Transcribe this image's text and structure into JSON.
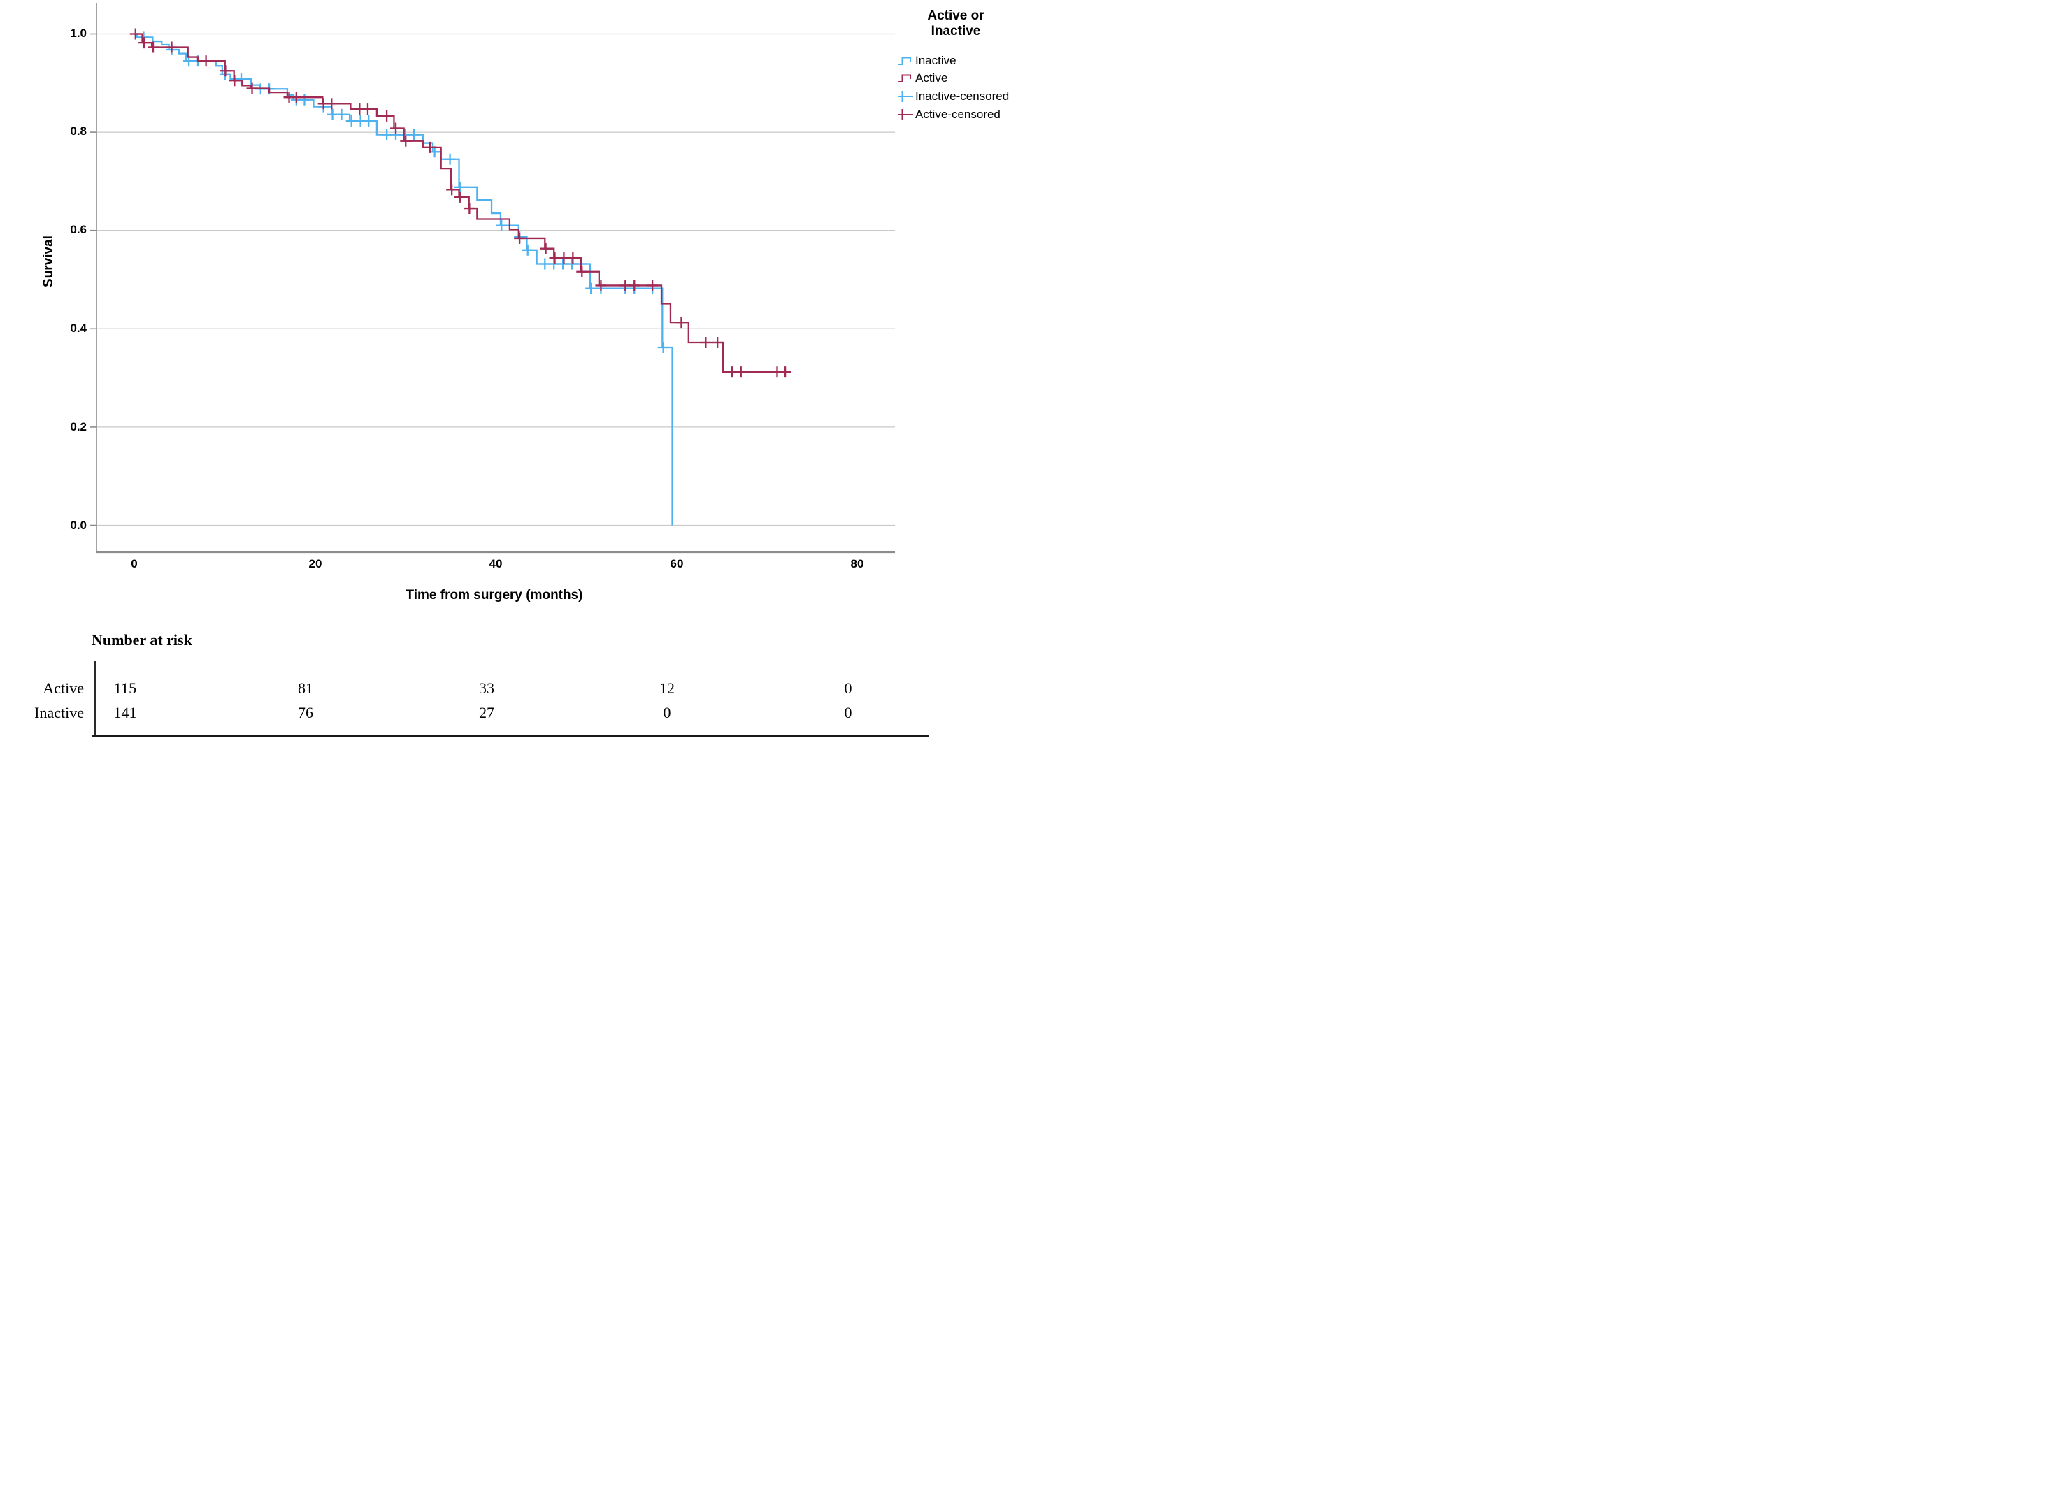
{
  "accent_colors": {
    "inactive_blue": "#4FB2F0",
    "active_red": "#A12A55",
    "grid": "#C9C9C9",
    "axis": "#8C8C8C"
  },
  "legend": {
    "title": "Active or\nInactive",
    "items": [
      {
        "label": "Inactive",
        "color": "#4FB2F0",
        "glyph": "step-line"
      },
      {
        "label": "Active",
        "color": "#A12A55",
        "glyph": "step-line"
      },
      {
        "label": "Inactive-censored",
        "color": "#4FB2F0",
        "glyph": "censor-plus"
      },
      {
        "label": "Active-censored",
        "color": "#A12A55",
        "glyph": "censor-plus"
      }
    ]
  },
  "at_risk": {
    "title": "Number at risk",
    "times": [
      0,
      20,
      40,
      60,
      80
    ],
    "rows": [
      {
        "label": "Active",
        "values": [
          "115",
          "81",
          "33",
          "12",
          "0"
        ]
      },
      {
        "label": "Inactive",
        "values": [
          "141",
          "76",
          "27",
          "0",
          "0"
        ]
      }
    ]
  },
  "chart_data": {
    "type": "line",
    "subtype": "kaplan-meier-step",
    "title": "",
    "xlabel": "Time from surgery (months)",
    "ylabel": "Survival",
    "xlim": [
      -4.2,
      84.1
    ],
    "ylim": [
      -0.055,
      1.065
    ],
    "x_ticks": [
      0,
      20,
      40,
      60,
      80
    ],
    "x_tick_labels": [
      "0",
      "20",
      "40",
      "60",
      "80"
    ],
    "y_ticks": [
      1.0,
      0.8,
      0.6,
      0.4,
      0.2,
      0.0
    ],
    "y_tick_labels": [
      "1.0",
      "0.8",
      "0.6",
      "0.4",
      "0.2",
      "0.0"
    ],
    "grid": "horizontal-only",
    "legend_position": "top-right-outside",
    "grid_color": "#C9C9C9",
    "axis_color": "#8C8C8C",
    "series": [
      {
        "name": "Inactive",
        "color": "#4FB2F0",
        "end_time": 59.5,
        "steps": [
          [
            0,
            1.0
          ],
          [
            0.25,
            0.993
          ],
          [
            2,
            0.985
          ],
          [
            3,
            0.978
          ],
          [
            3.8,
            0.968
          ],
          [
            4.9,
            0.96
          ],
          [
            5.7,
            0.945
          ],
          [
            9,
            0.935
          ],
          [
            9.7,
            0.917
          ],
          [
            10.6,
            0.908
          ],
          [
            12.9,
            0.896
          ],
          [
            13.9,
            0.888
          ],
          [
            16.9,
            0.876
          ],
          [
            17.6,
            0.866
          ],
          [
            19.8,
            0.852
          ],
          [
            21.8,
            0.836
          ],
          [
            23.8,
            0.823
          ],
          [
            26.8,
            0.795
          ],
          [
            31.9,
            0.778
          ],
          [
            33,
            0.76
          ],
          [
            33.9,
            0.745
          ],
          [
            35.9,
            0.688
          ],
          [
            37.9,
            0.662
          ],
          [
            39.5,
            0.635
          ],
          [
            40.5,
            0.61
          ],
          [
            42.5,
            0.587
          ],
          [
            43.4,
            0.56
          ],
          [
            44.5,
            0.532
          ],
          [
            50.4,
            0.482
          ],
          [
            58.4,
            0.362
          ],
          [
            59.5,
            0.0
          ]
        ],
        "censored": [
          1.0,
          4.1,
          6.0,
          7.0,
          10.0,
          11.8,
          13.95,
          14.9,
          17.9,
          18.8,
          20.9,
          21.9,
          22.9,
          24.0,
          25.0,
          25.9,
          27.9,
          28.9,
          29.9,
          30.9,
          33.2,
          34.9,
          36.0,
          40.6,
          42.6,
          43.5,
          45.4,
          46.4,
          47.4,
          48.4,
          49.4,
          50.5,
          51.6,
          54.3,
          55.3,
          57.3,
          58.5
        ]
      },
      {
        "name": "Active",
        "color": "#A12A55",
        "end_time": 72.5,
        "steps": [
          [
            0,
            1.0
          ],
          [
            0.85,
            0.982
          ],
          [
            1.9,
            0.973
          ],
          [
            5.9,
            0.953
          ],
          [
            7,
            0.945
          ],
          [
            10,
            0.925
          ],
          [
            11,
            0.905
          ],
          [
            11.9,
            0.895
          ],
          [
            12.9,
            0.889
          ],
          [
            14.9,
            0.881
          ],
          [
            16.9,
            0.871
          ],
          [
            20.8,
            0.858
          ],
          [
            23.9,
            0.847
          ],
          [
            26.8,
            0.833
          ],
          [
            28.7,
            0.808
          ],
          [
            29.8,
            0.782
          ],
          [
            31.9,
            0.769
          ],
          [
            33.9,
            0.726
          ],
          [
            35,
            0.683
          ],
          [
            35.9,
            0.668
          ],
          [
            37,
            0.645
          ],
          [
            37.9,
            0.623
          ],
          [
            41.5,
            0.602
          ],
          [
            42.5,
            0.584
          ],
          [
            45.4,
            0.563
          ],
          [
            46.4,
            0.544
          ],
          [
            49.4,
            0.516
          ],
          [
            51.4,
            0.488
          ],
          [
            58.3,
            0.451
          ],
          [
            59.3,
            0.413
          ],
          [
            61.3,
            0.372
          ],
          [
            65.1,
            0.312
          ]
        ],
        "censored": [
          0.1,
          1.05,
          2.05,
          4.1,
          7.9,
          10.05,
          11.05,
          13.0,
          17.1,
          17.9,
          20.9,
          21.8,
          24.9,
          25.8,
          27.9,
          28.9,
          30.0,
          32.7,
          35.1,
          36.0,
          37.05,
          42.6,
          45.5,
          46.5,
          47.5,
          48.5,
          49.5,
          51.6,
          54.3,
          55.3,
          57.3,
          60.5,
          63.2,
          64.5,
          66.1,
          67.1,
          71.1,
          72.0
        ]
      }
    ]
  }
}
